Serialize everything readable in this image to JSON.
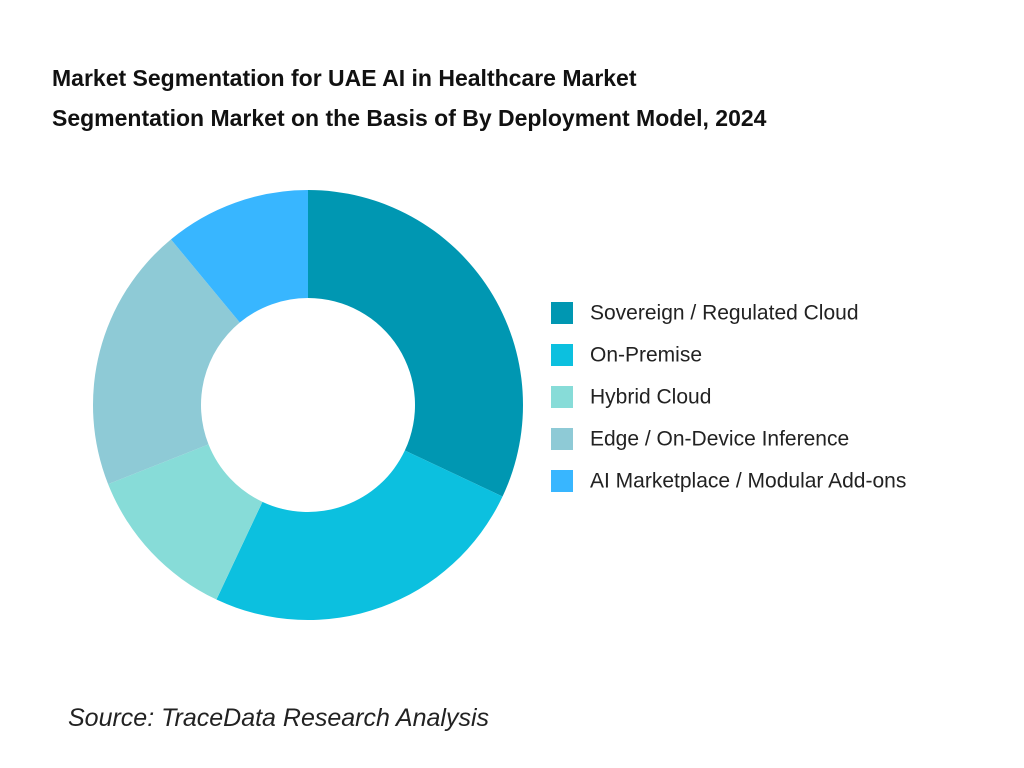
{
  "chart_data": {
    "type": "donut",
    "title": [
      "Market Segmentation for UAE AI in Healthcare Market",
      "Segmentation Market on the Basis of By Deployment Model, 2024"
    ],
    "categories": [
      "Sovereign / Regulated Cloud",
      "On-Premise",
      "Hybrid Cloud",
      "Edge / On-Device Inference",
      "AI Marketplace / Modular Add-ons"
    ],
    "values": [
      32,
      25,
      12,
      20,
      11
    ],
    "colors": [
      "#0097b2",
      "#0cc0df",
      "#87dcd8",
      "#8ecad6",
      "#38b6ff"
    ],
    "legend": "right",
    "source": "Source: TraceData Research Analysis"
  }
}
